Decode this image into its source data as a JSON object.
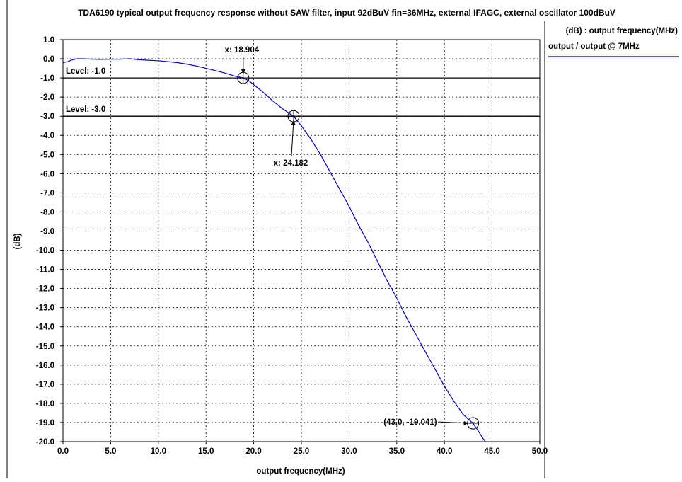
{
  "chart_data": {
    "type": "line",
    "title": "TDA6190 typical output frequency response without SAW filter, input 92dBuV fin=36MHz, external IFAGC, external oscillator 100dBuV",
    "xlabel": "output frequency(MHz)",
    "ylabel": "(dB)",
    "xlim": [
      0,
      50
    ],
    "ylim": [
      -20,
      1
    ],
    "x_ticks": [
      "0.0",
      "5.0",
      "10.0",
      "15.0",
      "20.0",
      "25.0",
      "30.0",
      "35.0",
      "40.0",
      "45.0",
      "50.0"
    ],
    "y_ticks": [
      "1.0",
      "0.0",
      "-1.0",
      "-2.0",
      "-3.0",
      "-4.0",
      "-5.0",
      "-6.0",
      "-7.0",
      "-8.0",
      "-9.0",
      "-10.0",
      "-11.0",
      "-12.0",
      "-13.0",
      "-14.0",
      "-15.0",
      "-16.0",
      "-17.0",
      "-18.0",
      "-19.0",
      "-20.0"
    ],
    "grid": true,
    "legend": {
      "header": "(dB)  : output frequency(MHz)",
      "position": "right",
      "entries": [
        {
          "label": "output / output @ 7MHz",
          "color": "#0000cc"
        }
      ]
    },
    "series": [
      {
        "name": "output / output @ 7MHz",
        "color": "#0000cc",
        "x": [
          0.0,
          0.5,
          1.0,
          1.5,
          2.0,
          3.0,
          4.0,
          5.0,
          6.0,
          7.0,
          8.0,
          9.0,
          10.0,
          11.0,
          12.0,
          13.0,
          14.0,
          15.0,
          16.0,
          17.0,
          18.0,
          18.904,
          19.5,
          20.0,
          21.0,
          22.0,
          23.0,
          24.182,
          25.0,
          26.0,
          27.0,
          28.0,
          29.0,
          30.0,
          31.0,
          32.0,
          33.0,
          34.0,
          35.0,
          36.0,
          37.0,
          38.0,
          39.0,
          40.0,
          41.0,
          42.0,
          43.0,
          43.5,
          44.0,
          44.3
        ],
        "y": [
          -0.2,
          -0.15,
          -0.05,
          0.0,
          0.0,
          -0.02,
          -0.03,
          -0.02,
          -0.02,
          0.0,
          -0.05,
          -0.08,
          -0.1,
          -0.15,
          -0.2,
          -0.28,
          -0.38,
          -0.5,
          -0.62,
          -0.75,
          -0.9,
          -1.0,
          -1.15,
          -1.35,
          -1.75,
          -2.2,
          -2.6,
          -3.0,
          -3.5,
          -4.2,
          -5.0,
          -5.9,
          -6.8,
          -7.7,
          -8.7,
          -9.6,
          -10.6,
          -11.6,
          -12.5,
          -13.5,
          -14.4,
          -15.3,
          -16.2,
          -17.1,
          -17.9,
          -18.6,
          -19.041,
          -19.4,
          -19.8,
          -20.0
        ]
      }
    ],
    "reference_lines": [
      {
        "label": "Level: -1.0",
        "y": -1.0
      },
      {
        "label": "Level: -3.0",
        "y": -3.0
      }
    ],
    "markers": [
      {
        "x": 18.904,
        "y": -1.0,
        "label": "x: 18.904",
        "label_side": "above"
      },
      {
        "x": 24.182,
        "y": -3.0,
        "label": "x: 24.182",
        "label_side": "below"
      },
      {
        "x": 43.0,
        "y": -19.041,
        "label": "(43.0, -19.041)",
        "label_side": "left"
      }
    ]
  }
}
